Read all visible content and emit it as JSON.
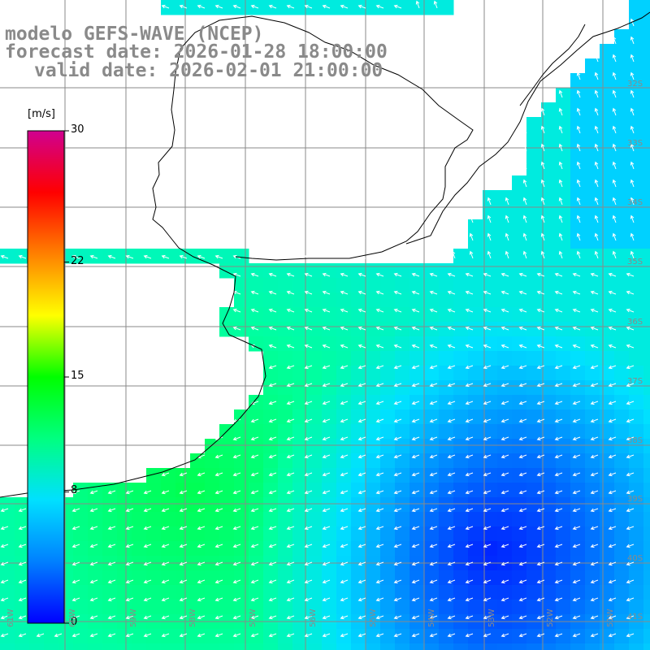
{
  "title": {
    "line1": "modelo GEFS-WAVE (NCEP)",
    "line2": "forecast date: 2026-01-28 18:00:00",
    "line3": "valid date: 2026-02-01 21:00:00"
  },
  "colorbar": {
    "unit": "[m/s]",
    "ticks": [
      {
        "label": "30",
        "value": 30
      },
      {
        "label": "22",
        "value": 22
      },
      {
        "label": "15",
        "value": 15
      },
      {
        "label": "8",
        "value": 8
      },
      {
        "label": "0",
        "value": 0
      }
    ],
    "colors": [
      "#0000ff",
      "#0080ff",
      "#00e0ff",
      "#00ff80",
      "#00ff00",
      "#ffff00",
      "#ff8000",
      "#ff0000",
      "#d00090"
    ]
  },
  "lat_labels": [
    "32S",
    "33S",
    "34S",
    "35S",
    "36S",
    "37S",
    "38S",
    "39S",
    "40S",
    "41S"
  ],
  "lon_labels": [
    "61W",
    "60W",
    "59W",
    "58W",
    "57W",
    "56W",
    "55W",
    "54W",
    "53W",
    "52W",
    "51W"
  ],
  "map": {
    "land_color": "#ffffff",
    "grid_color": "#8a8a8a",
    "coast_color": "#000000",
    "arrow_color": "#ffffff"
  }
}
